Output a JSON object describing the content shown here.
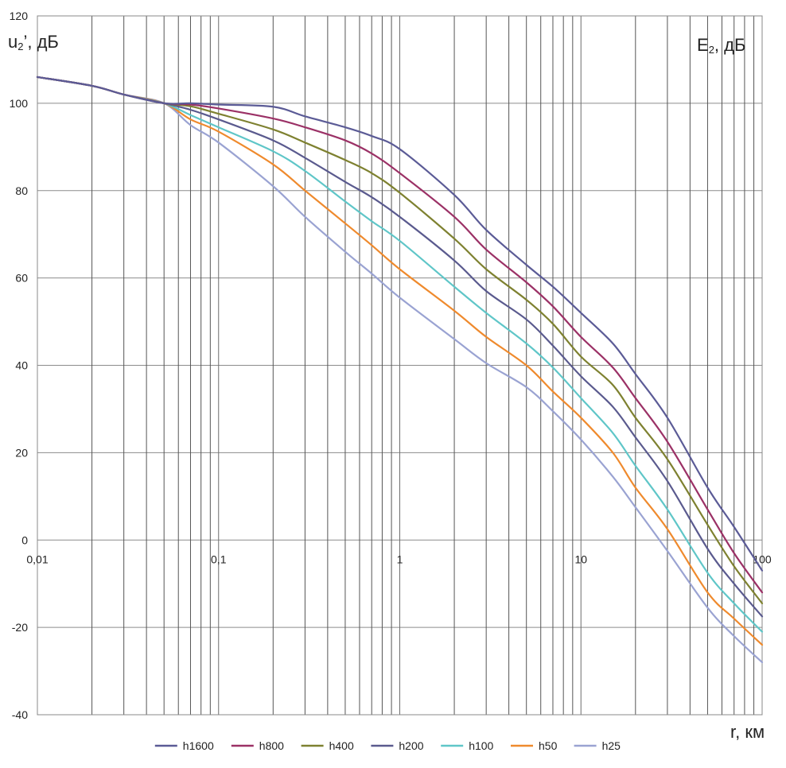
{
  "chart_data": {
    "type": "line",
    "x_scale": "log",
    "xlim": [
      0.01,
      100
    ],
    "ylim": [
      -40,
      120
    ],
    "grid": true,
    "legend_position": "bottom",
    "ylabel": {
      "main": "u",
      "sub": "2",
      "tail": "’, дБ"
    },
    "ylabel_right": {
      "main": "E",
      "sub": "2",
      "tail": ", дБ"
    },
    "xlabel": "r, км",
    "x_ticks": [
      {
        "value": 0.01,
        "label": "0,01"
      },
      {
        "value": 0.1,
        "label": "0,1"
      },
      {
        "value": 1,
        "label": "1"
      },
      {
        "value": 10,
        "label": "10"
      },
      {
        "value": 100,
        "label": "100"
      }
    ],
    "y_ticks": [
      {
        "value": 120,
        "label": "120"
      },
      {
        "value": 100,
        "label": "100"
      },
      {
        "value": 80,
        "label": "80"
      },
      {
        "value": 60,
        "label": "60"
      },
      {
        "value": 40,
        "label": "40"
      },
      {
        "value": 20,
        "label": "20"
      },
      {
        "value": 0,
        "label": "0"
      },
      {
        "value": -20,
        "label": "-20"
      },
      {
        "value": -40,
        "label": "-40"
      }
    ],
    "series": [
      {
        "name": "h1600",
        "color": "#5b5b96",
        "points": [
          [
            0.01,
            106
          ],
          [
            0.02,
            104
          ],
          [
            0.03,
            102
          ],
          [
            0.05,
            100
          ],
          [
            0.07,
            100
          ],
          [
            0.1,
            99.7
          ],
          [
            0.2,
            99.2
          ],
          [
            0.3,
            97
          ],
          [
            0.5,
            94.5
          ],
          [
            0.7,
            92.5
          ],
          [
            1,
            89.5
          ],
          [
            2,
            79
          ],
          [
            3,
            71
          ],
          [
            5,
            63
          ],
          [
            7,
            58
          ],
          [
            10,
            52
          ],
          [
            15,
            45
          ],
          [
            20,
            38
          ],
          [
            30,
            28
          ],
          [
            50,
            12
          ],
          [
            70,
            3
          ],
          [
            100,
            -7
          ]
        ]
      },
      {
        "name": "h800",
        "color": "#9b3166",
        "points": [
          [
            0.01,
            106
          ],
          [
            0.02,
            104
          ],
          [
            0.03,
            102
          ],
          [
            0.05,
            100
          ],
          [
            0.07,
            99.7
          ],
          [
            0.1,
            98.8
          ],
          [
            0.2,
            96.5
          ],
          [
            0.3,
            94.5
          ],
          [
            0.5,
            91.5
          ],
          [
            0.7,
            88.5
          ],
          [
            1,
            84
          ],
          [
            2,
            74
          ],
          [
            3,
            66.5
          ],
          [
            5,
            59
          ],
          [
            7,
            53.5
          ],
          [
            10,
            46.5
          ],
          [
            15,
            39.5
          ],
          [
            20,
            32.5
          ],
          [
            30,
            22.5
          ],
          [
            50,
            7
          ],
          [
            70,
            -3
          ],
          [
            100,
            -12
          ]
        ]
      },
      {
        "name": "h400",
        "color": "#7e8130",
        "points": [
          [
            0.01,
            106
          ],
          [
            0.02,
            104
          ],
          [
            0.03,
            102
          ],
          [
            0.05,
            100
          ],
          [
            0.07,
            99.3
          ],
          [
            0.1,
            97.6
          ],
          [
            0.2,
            94
          ],
          [
            0.3,
            91
          ],
          [
            0.5,
            87
          ],
          [
            0.7,
            84
          ],
          [
            1,
            79.5
          ],
          [
            2,
            69
          ],
          [
            3,
            62
          ],
          [
            5,
            55
          ],
          [
            7,
            49.5
          ],
          [
            10,
            42
          ],
          [
            15,
            35.5
          ],
          [
            20,
            28
          ],
          [
            30,
            18.5
          ],
          [
            50,
            3.5
          ],
          [
            70,
            -6
          ],
          [
            100,
            -14.5
          ]
        ]
      },
      {
        "name": "h200",
        "color": "#5a5a8e",
        "points": [
          [
            0.01,
            106
          ],
          [
            0.02,
            104
          ],
          [
            0.03,
            102
          ],
          [
            0.05,
            100
          ],
          [
            0.07,
            98.5
          ],
          [
            0.1,
            96.3
          ],
          [
            0.2,
            91.5
          ],
          [
            0.3,
            87.5
          ],
          [
            0.5,
            82
          ],
          [
            0.7,
            78.5
          ],
          [
            1,
            74
          ],
          [
            2,
            64
          ],
          [
            3,
            57
          ],
          [
            5,
            50.5
          ],
          [
            7,
            44.5
          ],
          [
            10,
            37.5
          ],
          [
            15,
            30.5
          ],
          [
            20,
            23.5
          ],
          [
            30,
            13.5
          ],
          [
            50,
            -2
          ],
          [
            70,
            -10
          ],
          [
            100,
            -17.5
          ]
        ]
      },
      {
        "name": "h100",
        "color": "#5fc6c8",
        "points": [
          [
            0.01,
            106
          ],
          [
            0.02,
            104
          ],
          [
            0.03,
            102
          ],
          [
            0.05,
            100
          ],
          [
            0.07,
            97.3
          ],
          [
            0.1,
            94.5
          ],
          [
            0.2,
            89
          ],
          [
            0.3,
            84.5
          ],
          [
            0.5,
            77.5
          ],
          [
            0.7,
            73
          ],
          [
            1,
            68.5
          ],
          [
            2,
            58
          ],
          [
            3,
            52
          ],
          [
            5,
            45
          ],
          [
            7,
            39.5
          ],
          [
            10,
            32.5
          ],
          [
            15,
            24.5
          ],
          [
            20,
            17
          ],
          [
            30,
            7
          ],
          [
            50,
            -7.5
          ],
          [
            70,
            -14.5
          ],
          [
            100,
            -21
          ]
        ]
      },
      {
        "name": "h50",
        "color": "#ef8a2d",
        "points": [
          [
            0.01,
            106
          ],
          [
            0.02,
            104
          ],
          [
            0.03,
            102
          ],
          [
            0.05,
            100
          ],
          [
            0.07,
            96.3
          ],
          [
            0.1,
            93.5
          ],
          [
            0.2,
            86
          ],
          [
            0.3,
            80
          ],
          [
            0.5,
            72.5
          ],
          [
            0.7,
            67.5
          ],
          [
            1,
            62
          ],
          [
            2,
            52.5
          ],
          [
            3,
            46.5
          ],
          [
            5,
            40
          ],
          [
            7,
            34
          ],
          [
            10,
            28
          ],
          [
            15,
            20
          ],
          [
            20,
            12
          ],
          [
            30,
            2.5
          ],
          [
            50,
            -12
          ],
          [
            70,
            -18
          ],
          [
            100,
            -24
          ]
        ]
      },
      {
        "name": "h25",
        "color": "#9aa3d2",
        "points": [
          [
            0.01,
            106
          ],
          [
            0.02,
            104
          ],
          [
            0.03,
            102
          ],
          [
            0.05,
            100
          ],
          [
            0.07,
            95
          ],
          [
            0.1,
            91
          ],
          [
            0.2,
            81
          ],
          [
            0.3,
            74
          ],
          [
            0.5,
            66
          ],
          [
            0.7,
            61
          ],
          [
            1,
            55.5
          ],
          [
            2,
            46
          ],
          [
            3,
            40.5
          ],
          [
            5,
            35
          ],
          [
            7,
            29.5
          ],
          [
            10,
            23
          ],
          [
            15,
            14.5
          ],
          [
            20,
            7.5
          ],
          [
            30,
            -2.5
          ],
          [
            50,
            -15.5
          ],
          [
            70,
            -22
          ],
          [
            100,
            -28
          ]
        ]
      }
    ]
  }
}
